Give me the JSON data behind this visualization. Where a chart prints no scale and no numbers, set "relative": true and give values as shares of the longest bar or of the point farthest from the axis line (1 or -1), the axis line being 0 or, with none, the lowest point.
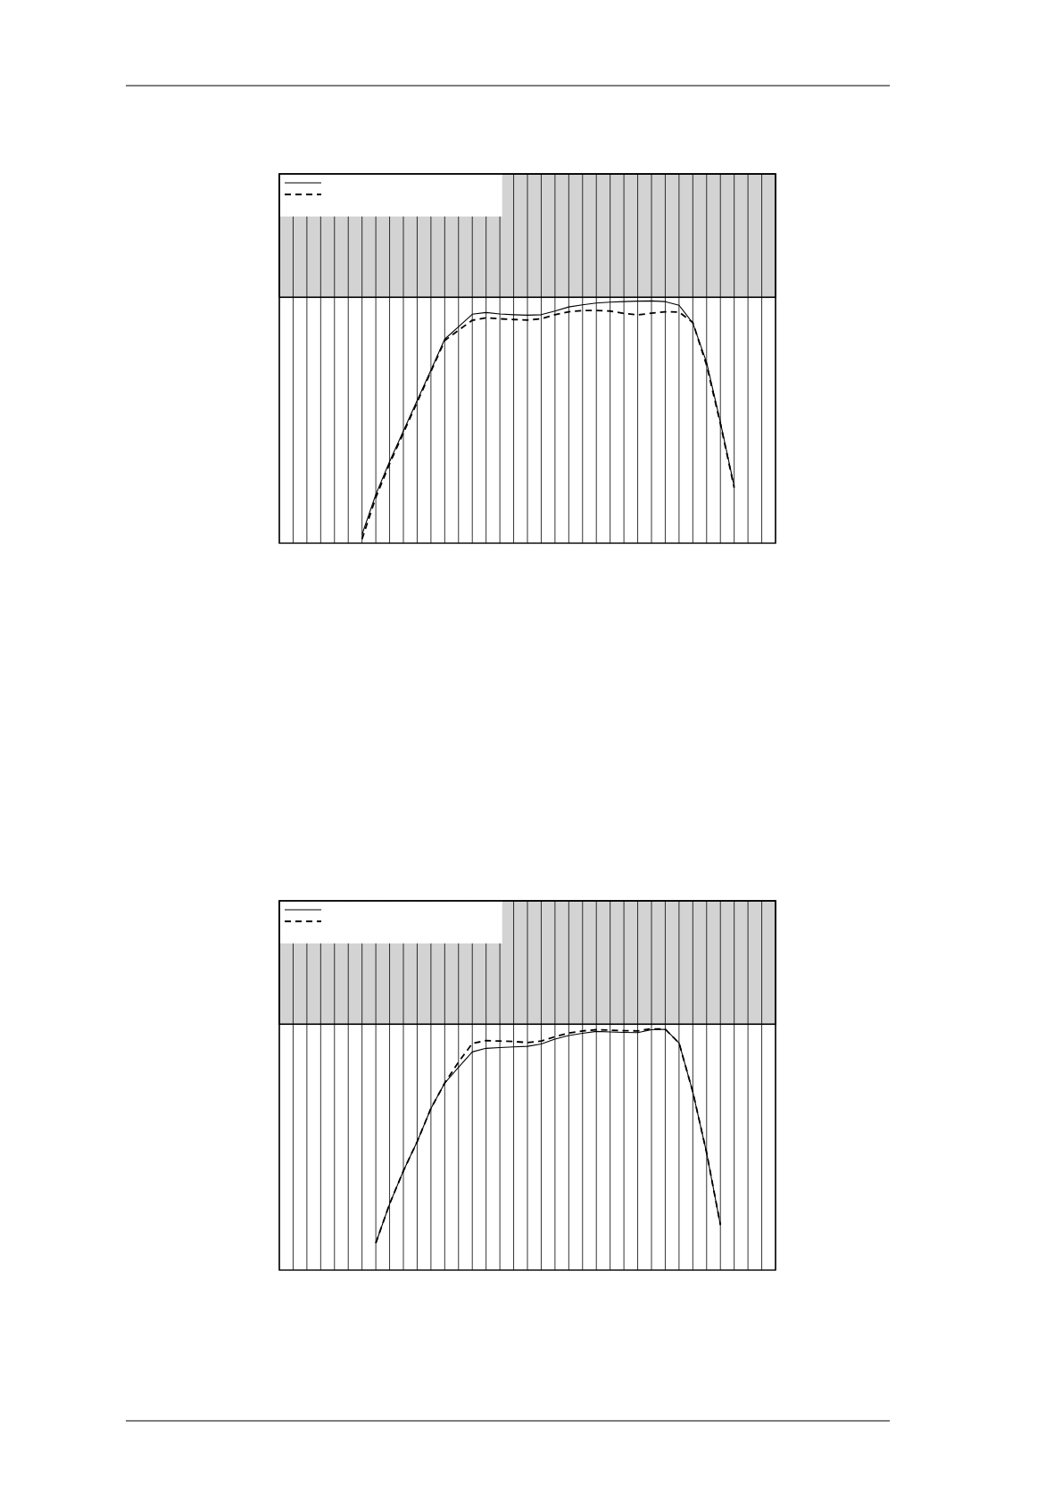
{
  "chart_data": [
    {
      "type": "line",
      "categories": [
        null,
        null,
        null,
        null,
        null,
        null,
        null,
        null,
        null,
        null,
        null,
        null,
        null,
        null,
        null,
        null,
        null,
        null,
        null,
        null,
        null,
        null,
        null,
        null,
        null,
        null,
        null,
        null,
        null,
        null,
        null,
        null,
        null,
        null,
        null,
        null,
        null
      ],
      "relative": true,
      "grid": "x",
      "bands": [
        {
          "axis": "y",
          "from": 1.015,
          "to": 1.524,
          "color": "#d3d3d3"
        }
      ],
      "series": [
        {
          "color": "#000000",
          "line_style": "solid",
          "values": [
            null,
            null,
            null,
            null,
            null,
            null,
            0.036,
            0.201,
            0.337,
            0.463,
            0.589,
            0.714,
            0.842,
            0.893,
            0.945,
            0.952,
            0.946,
            0.943,
            0.941,
            0.943,
            0.958,
            0.975,
            0.984,
            0.991,
            0.995,
            0.997,
            0.999,
            1,
            0.997,
            0.982,
            0.908,
            0.746,
            0.499,
            0.235,
            null,
            null,
            null
          ]
        },
        {
          "color": "#000000",
          "line_style": "dashed",
          "values": [
            null,
            null,
            null,
            null,
            null,
            null,
            0.017,
            0.189,
            0.328,
            0.455,
            0.582,
            0.709,
            0.836,
            0.879,
            0.92,
            0.93,
            0.926,
            0.923,
            0.921,
            0.926,
            0.943,
            0.955,
            0.96,
            0.96,
            0.958,
            0.948,
            0.942,
            0.949,
            0.955,
            0.954,
            0.911,
            0.734,
            0.493,
            0.229,
            null,
            null,
            null
          ]
        }
      ]
    },
    {
      "type": "line",
      "categories": [
        null,
        null,
        null,
        null,
        null,
        null,
        null,
        null,
        null,
        null,
        null,
        null,
        null,
        null,
        null,
        null,
        null,
        null,
        null,
        null,
        null,
        null,
        null,
        null,
        null,
        null,
        null,
        null,
        null,
        null,
        null,
        null,
        null,
        null,
        null,
        null,
        null
      ],
      "relative": true,
      "grid": "x",
      "bands": [
        {
          "axis": "y",
          "from": 1.019,
          "to": 1.53,
          "color": "#d3d3d3"
        }
      ],
      "series": [
        {
          "color": "#000000",
          "line_style": "solid",
          "values": [
            null,
            null,
            null,
            null,
            null,
            null,
            null,
            0.112,
            0.274,
            0.411,
            0.532,
            0.67,
            0.775,
            0.84,
            0.904,
            0.919,
            0.922,
            0.925,
            0.927,
            0.937,
            0.957,
            0.972,
            0.981,
            0.989,
            0.987,
            0.985,
            0.984,
            0.996,
            0.998,
            0.941,
            0.738,
            0.486,
            0.187,
            null,
            null,
            null,
            null
          ]
        },
        {
          "color": "#000000",
          "line_style": "dashed",
          "values": [
            null,
            null,
            null,
            null,
            null,
            null,
            null,
            0.112,
            0.274,
            0.411,
            0.532,
            0.67,
            0.775,
            0.862,
            0.939,
            0.951,
            0.949,
            0.947,
            0.943,
            0.949,
            0.967,
            0.982,
            0.991,
            0.996,
            0.994,
            0.992,
            0.991,
            1,
            0.998,
            0.941,
            0.738,
            0.486,
            0.187,
            null,
            null,
            null,
            null
          ]
        }
      ]
    }
  ]
}
